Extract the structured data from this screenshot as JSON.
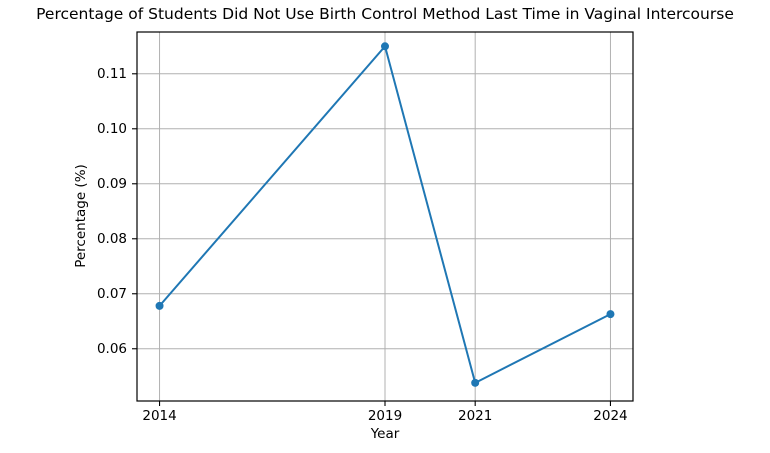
{
  "chart_data": {
    "type": "line",
    "title": "Percentage of Students Did Not Use Birth Control Method Last Time in Vaginal Intercourse",
    "xlabel": "Year",
    "ylabel": "Percentage (%)",
    "x": [
      2014,
      2019,
      2021,
      2024
    ],
    "values": [
      0.0678,
      0.115,
      0.0538,
      0.0663
    ],
    "xticks": [
      2014,
      2019,
      2021,
      2024
    ],
    "xtick_labels": [
      "2014",
      "2019",
      "2021",
      "2024"
    ],
    "yticks": [
      0.06,
      0.07,
      0.08,
      0.09,
      0.1,
      0.11
    ],
    "ytick_labels": [
      "0.06",
      "0.07",
      "0.08",
      "0.09",
      "0.10",
      "0.11"
    ],
    "xlim": [
      2013.5,
      2024.5
    ],
    "ylim": [
      0.0505,
      0.1176
    ],
    "grid": true,
    "legend": "none",
    "marker": "o",
    "line_color": "#1f77b4",
    "grid_color": "#b0b0b0",
    "spine_color": "#000000",
    "background_color": "#ffffff",
    "text_color": "#000000"
  }
}
